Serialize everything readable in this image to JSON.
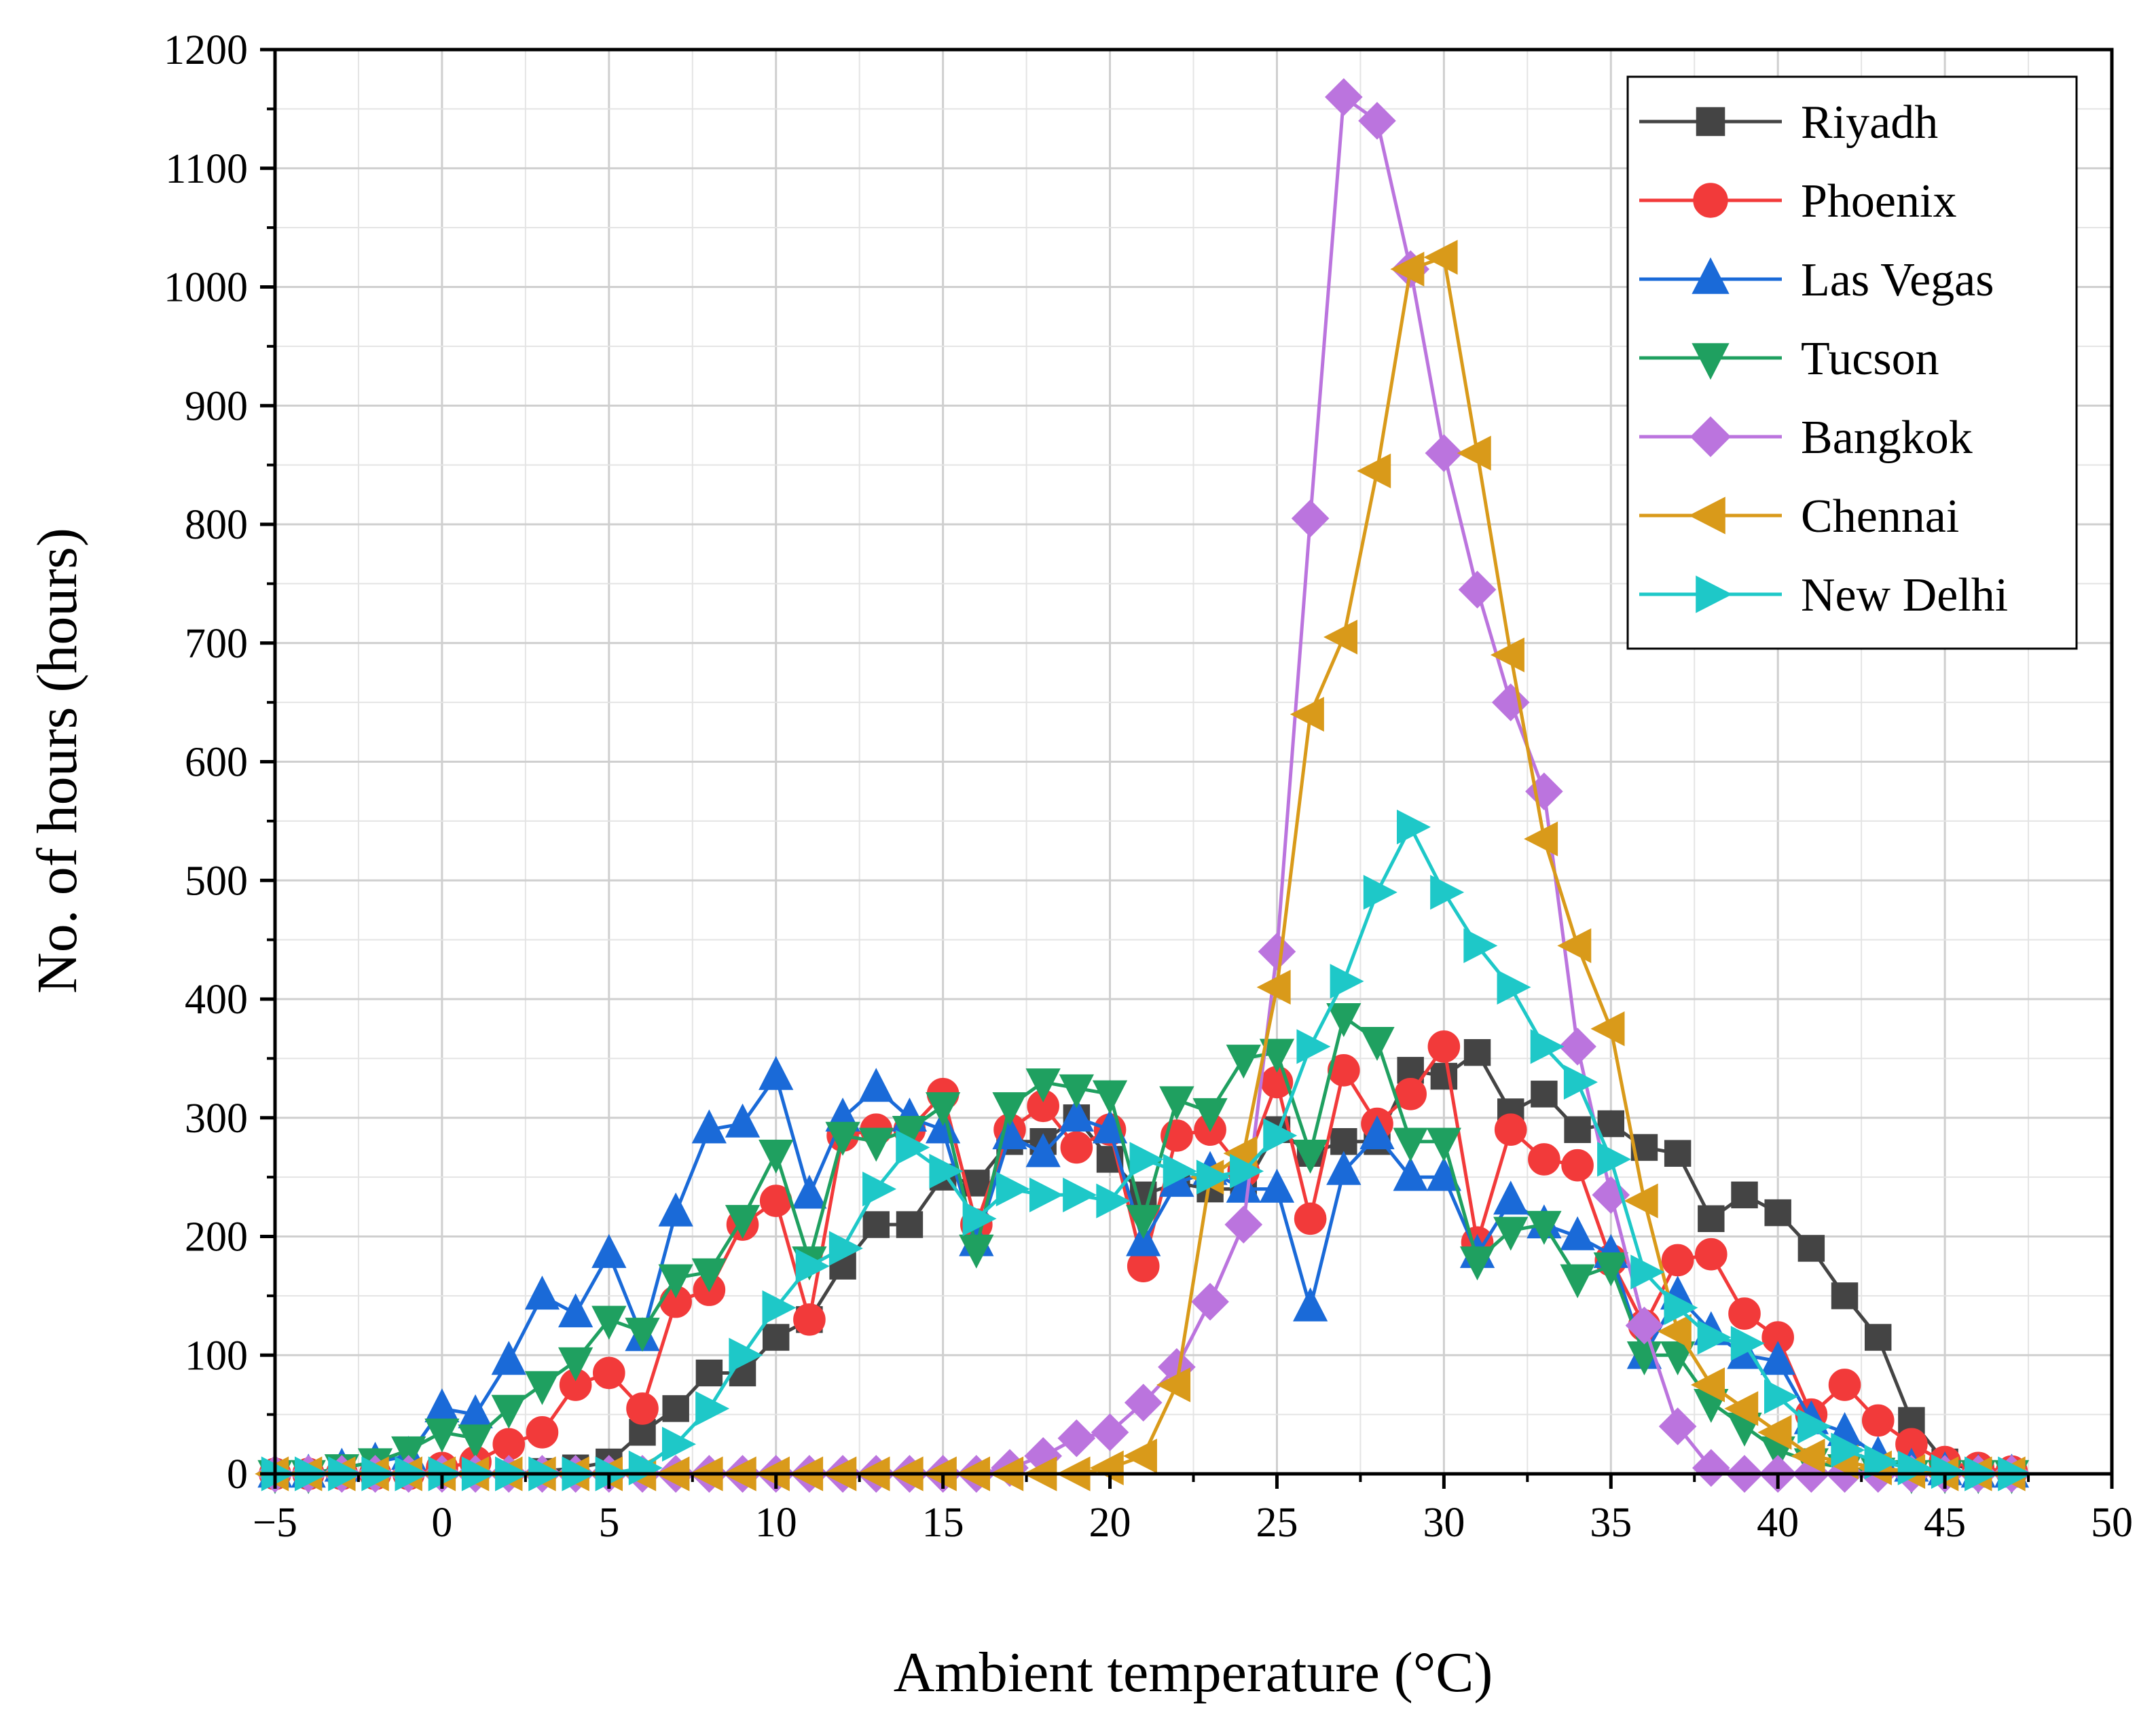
{
  "chart_data": {
    "type": "line",
    "title": "",
    "xlabel": "Ambient temperature (°C)",
    "ylabel": "No. of hours (hours)",
    "xlim": [
      -5,
      50
    ],
    "ylim": [
      0,
      1200
    ],
    "xticks": [
      -5,
      0,
      5,
      10,
      15,
      20,
      25,
      30,
      35,
      40,
      45,
      50
    ],
    "yticks": [
      0,
      100,
      200,
      300,
      400,
      500,
      600,
      700,
      800,
      900,
      1000,
      1100,
      1200
    ],
    "xtick_labels": [
      "−5",
      "0",
      "5",
      "10",
      "15",
      "20",
      "25",
      "30",
      "35",
      "40",
      "45",
      "50"
    ],
    "ytick_labels": [
      "0",
      "100",
      "200",
      "300",
      "400",
      "500",
      "600",
      "700",
      "800",
      "900",
      "1000",
      "1100",
      "1200"
    ],
    "grid": true,
    "legend_position": "top-right",
    "x": [
      -5,
      -4,
      -3,
      -2,
      -1,
      0,
      1,
      2,
      3,
      4,
      5,
      6,
      7,
      8,
      9,
      10,
      11,
      12,
      13,
      14,
      15,
      16,
      17,
      18,
      19,
      20,
      21,
      22,
      23,
      24,
      25,
      26,
      27,
      28,
      29,
      30,
      31,
      32,
      33,
      34,
      35,
      36,
      37,
      38,
      39,
      40,
      41,
      42,
      43,
      44,
      45,
      46,
      47
    ],
    "series": [
      {
        "name": "Riyadh",
        "color": "#444444",
        "marker": "square",
        "values": [
          0,
          0,
          0,
          0,
          0,
          0,
          0,
          0,
          2,
          5,
          10,
          35,
          55,
          85,
          85,
          115,
          130,
          175,
          210,
          210,
          250,
          245,
          280,
          280,
          300,
          265,
          235,
          245,
          240,
          240,
          290,
          270,
          280,
          280,
          340,
          335,
          355,
          305,
          320,
          290,
          295,
          275,
          270,
          215,
          235,
          220,
          190,
          150,
          115,
          45,
          10,
          2,
          0
        ]
      },
      {
        "name": "Phoenix",
        "color": "#f23a3a",
        "marker": "circle",
        "values": [
          0,
          0,
          0,
          0,
          0,
          5,
          10,
          25,
          35,
          75,
          85,
          55,
          145,
          155,
          210,
          230,
          130,
          285,
          290,
          290,
          320,
          210,
          290,
          310,
          275,
          290,
          175,
          285,
          290,
          255,
          330,
          215,
          340,
          295,
          320,
          360,
          195,
          290,
          265,
          260,
          180,
          125,
          180,
          185,
          135,
          115,
          50,
          75,
          45,
          25,
          10,
          5,
          2
        ]
      },
      {
        "name": "Las Vegas",
        "color": "#1a6ad8",
        "marker": "triangle-up",
        "values": [
          0,
          0,
          5,
          10,
          15,
          55,
          50,
          95,
          150,
          135,
          185,
          115,
          220,
          290,
          295,
          335,
          235,
          300,
          325,
          300,
          290,
          195,
          285,
          270,
          300,
          290,
          195,
          245,
          255,
          240,
          240,
          140,
          255,
          285,
          250,
          250,
          185,
          230,
          210,
          200,
          185,
          100,
          150,
          120,
          100,
          95,
          45,
          35,
          15,
          5,
          2,
          0,
          0
        ]
      },
      {
        "name": "Tucson",
        "color": "#1fa060",
        "marker": "triangle-down",
        "values": [
          0,
          0,
          5,
          10,
          20,
          35,
          30,
          55,
          75,
          95,
          130,
          120,
          165,
          170,
          215,
          270,
          180,
          285,
          280,
          290,
          310,
          190,
          310,
          330,
          325,
          320,
          215,
          315,
          305,
          350,
          355,
          270,
          385,
          365,
          280,
          280,
          180,
          205,
          210,
          165,
          175,
          100,
          100,
          60,
          40,
          20,
          10,
          5,
          2,
          0,
          0,
          0,
          0
        ]
      },
      {
        "name": "Bangkok",
        "color": "#bb74de",
        "marker": "diamond",
        "values": [
          0,
          0,
          0,
          0,
          0,
          0,
          0,
          0,
          0,
          0,
          0,
          0,
          0,
          0,
          0,
          0,
          0,
          0,
          0,
          0,
          0,
          0,
          5,
          15,
          30,
          35,
          60,
          90,
          145,
          210,
          440,
          805,
          1160,
          1140,
          1015,
          860,
          745,
          650,
          575,
          360,
          235,
          125,
          40,
          5,
          0,
          0,
          0,
          0,
          0,
          0,
          0,
          0,
          0
        ]
      },
      {
        "name": "Chennai",
        "color": "#d99a1a",
        "marker": "triangle-left",
        "values": [
          0,
          0,
          0,
          0,
          0,
          0,
          0,
          0,
          0,
          0,
          0,
          0,
          0,
          0,
          0,
          0,
          0,
          0,
          0,
          0,
          0,
          0,
          0,
          0,
          0,
          5,
          15,
          75,
          250,
          270,
          410,
          640,
          705,
          845,
          1015,
          1025,
          860,
          690,
          535,
          445,
          375,
          230,
          120,
          75,
          55,
          35,
          15,
          10,
          5,
          2,
          0,
          0,
          0
        ]
      },
      {
        "name": "New Delhi",
        "color": "#1ec8c8",
        "marker": "triangle-right",
        "values": [
          0,
          0,
          0,
          0,
          0,
          0,
          0,
          0,
          0,
          0,
          0,
          5,
          25,
          55,
          100,
          140,
          175,
          190,
          240,
          275,
          255,
          215,
          240,
          235,
          235,
          230,
          265,
          255,
          250,
          255,
          285,
          360,
          415,
          490,
          545,
          490,
          445,
          410,
          360,
          330,
          265,
          170,
          140,
          115,
          110,
          65,
          40,
          20,
          10,
          5,
          2,
          0,
          0
        ]
      }
    ]
  }
}
